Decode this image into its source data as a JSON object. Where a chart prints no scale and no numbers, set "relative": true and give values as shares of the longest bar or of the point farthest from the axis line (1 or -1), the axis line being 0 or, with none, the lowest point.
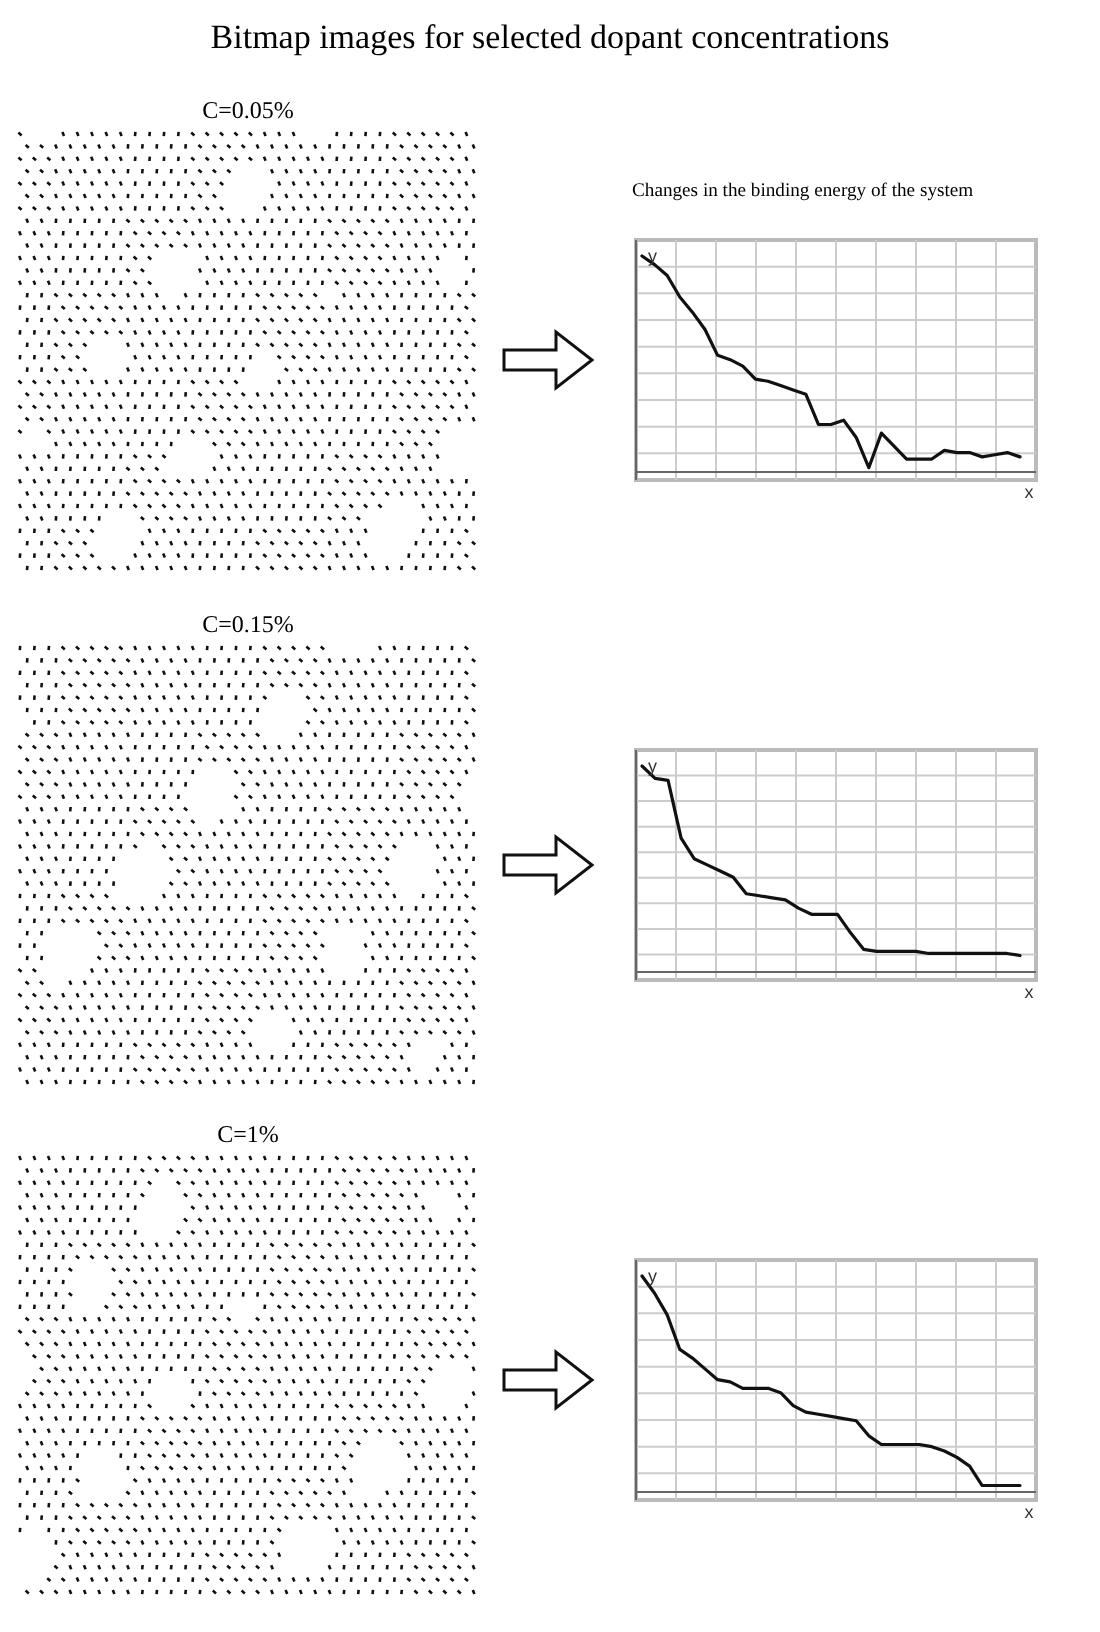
{
  "chart_data": [
    {
      "type": "line",
      "title": "Bitmap images for selected dopant concentrations",
      "subtitle": "Changes in the binding energy of the system",
      "annotations": [
        "C=0.05%"
      ],
      "xlabel": "x",
      "ylabel": "y",
      "relative": true,
      "grid": true,
      "categories": [
        null,
        null,
        null,
        null,
        null,
        null,
        null,
        null,
        null,
        null,
        null,
        null,
        null,
        null,
        null,
        null,
        null,
        null,
        null,
        null,
        null,
        null,
        null,
        null,
        null,
        null,
        null,
        null,
        null,
        null,
        null
      ],
      "series": [
        {
          "color": "#111111",
          "values": [
            1.0,
            0.96,
            0.91,
            0.81,
            0.74,
            0.66,
            0.54,
            0.52,
            0.49,
            0.43,
            0.42,
            0.4,
            0.38,
            0.36,
            0.22,
            0.22,
            0.24,
            0.16,
            0.02,
            0.18,
            0.12,
            0.06,
            0.06,
            0.06,
            0.1,
            0.09,
            0.09,
            0.07,
            0.08,
            0.09,
            0.07
          ]
        }
      ]
    },
    {
      "type": "line",
      "annotations": [
        "C=0.15%"
      ],
      "xlabel": "x",
      "ylabel": "y",
      "relative": true,
      "grid": true,
      "categories": [
        null,
        null,
        null,
        null,
        null,
        null,
        null,
        null,
        null,
        null,
        null,
        null,
        null,
        null,
        null,
        null,
        null,
        null,
        null,
        null,
        null,
        null,
        null,
        null,
        null,
        null,
        null,
        null,
        null,
        null
      ],
      "series": [
        {
          "color": "#111111",
          "values": [
            1.0,
            0.94,
            0.93,
            0.65,
            0.55,
            0.52,
            0.49,
            0.46,
            0.38,
            0.37,
            0.36,
            0.35,
            0.31,
            0.28,
            0.28,
            0.28,
            0.19,
            0.11,
            0.1,
            0.1,
            0.1,
            0.1,
            0.09,
            0.09,
            0.09,
            0.09,
            0.09,
            0.09,
            0.09,
            0.08
          ]
        }
      ]
    },
    {
      "type": "line",
      "annotations": [
        "C=1%"
      ],
      "xlabel": "x",
      "ylabel": "y",
      "relative": true,
      "grid": true,
      "categories": [
        null,
        null,
        null,
        null,
        null,
        null,
        null,
        null,
        null,
        null,
        null,
        null,
        null,
        null,
        null,
        null,
        null,
        null,
        null,
        null,
        null,
        null,
        null,
        null,
        null,
        null,
        null,
        null,
        null,
        null,
        null
      ],
      "series": [
        {
          "color": "#111111",
          "values": [
            1.0,
            0.92,
            0.82,
            0.66,
            0.62,
            0.57,
            0.52,
            0.51,
            0.48,
            0.48,
            0.48,
            0.46,
            0.4,
            0.37,
            0.36,
            0.35,
            0.34,
            0.33,
            0.26,
            0.22,
            0.22,
            0.22,
            0.22,
            0.21,
            0.19,
            0.16,
            0.12,
            0.03,
            0.03,
            0.03,
            0.03
          ]
        }
      ]
    }
  ]
}
